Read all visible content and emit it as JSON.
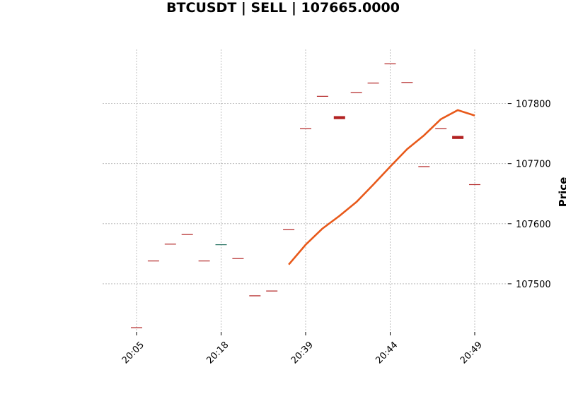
{
  "chart_data": {
    "type": "candlestick",
    "title": "BTCUSDT | SELL | 107665.0000",
    "ylabel": "Price",
    "xlabel": "",
    "ylim": [
      107420,
      107890
    ],
    "grid": true,
    "y_axis_side": "right",
    "y_ticks": [
      107500,
      107600,
      107700,
      107800
    ],
    "x_ticks": [
      {
        "index": 0,
        "label": "20:05"
      },
      {
        "index": 5,
        "label": "20:18"
      },
      {
        "index": 10,
        "label": "20:39"
      },
      {
        "index": 15,
        "label": "20:44"
      },
      {
        "index": 20,
        "label": "20:49"
      }
    ],
    "candles": [
      {
        "index": 0,
        "open": 107427,
        "close": 107427,
        "color": "#b22222"
      },
      {
        "index": 1,
        "open": 107538,
        "close": 107538,
        "color": "#b22222"
      },
      {
        "index": 2,
        "open": 107566,
        "close": 107566,
        "color": "#b22222"
      },
      {
        "index": 3,
        "open": 107582,
        "close": 107582,
        "color": "#b22222"
      },
      {
        "index": 4,
        "open": 107538,
        "close": 107538,
        "color": "#b22222"
      },
      {
        "index": 5,
        "open": 107565,
        "close": 107565,
        "color": "#1b6b5a"
      },
      {
        "index": 6,
        "open": 107542,
        "close": 107542,
        "color": "#b22222"
      },
      {
        "index": 7,
        "open": 107480,
        "close": 107480,
        "color": "#b22222"
      },
      {
        "index": 8,
        "open": 107488,
        "close": 107488,
        "color": "#b22222"
      },
      {
        "index": 9,
        "open": 107590,
        "close": 107590,
        "color": "#b22222"
      },
      {
        "index": 10,
        "open": 107758,
        "close": 107758,
        "color": "#b22222"
      },
      {
        "index": 11,
        "open": 107812,
        "close": 107812,
        "color": "#b22222"
      },
      {
        "index": 12,
        "open": 107779,
        "close": 107774,
        "color": "#b22222"
      },
      {
        "index": 13,
        "open": 107818,
        "close": 107818,
        "color": "#b22222"
      },
      {
        "index": 14,
        "open": 107834,
        "close": 107834,
        "color": "#b22222"
      },
      {
        "index": 15,
        "open": 107866,
        "close": 107866,
        "color": "#b22222"
      },
      {
        "index": 16,
        "open": 107835,
        "close": 107835,
        "color": "#b22222"
      },
      {
        "index": 17,
        "open": 107695,
        "close": 107695,
        "color": "#b22222"
      },
      {
        "index": 18,
        "open": 107758,
        "close": 107758,
        "color": "#b22222"
      },
      {
        "index": 19,
        "open": 107746,
        "close": 107741,
        "color": "#b22222"
      },
      {
        "index": 20,
        "open": 107665,
        "close": 107665,
        "color": "#b22222"
      }
    ],
    "series": [
      {
        "color": "#e8591a",
        "x": [
          9,
          10,
          11,
          12,
          13,
          14,
          15,
          16,
          17,
          18,
          19,
          20
        ],
        "values": [
          107532,
          107565,
          107592,
          107613,
          107636,
          107665,
          107695,
          107724,
          107747,
          107774,
          107789,
          107780
        ]
      }
    ]
  }
}
